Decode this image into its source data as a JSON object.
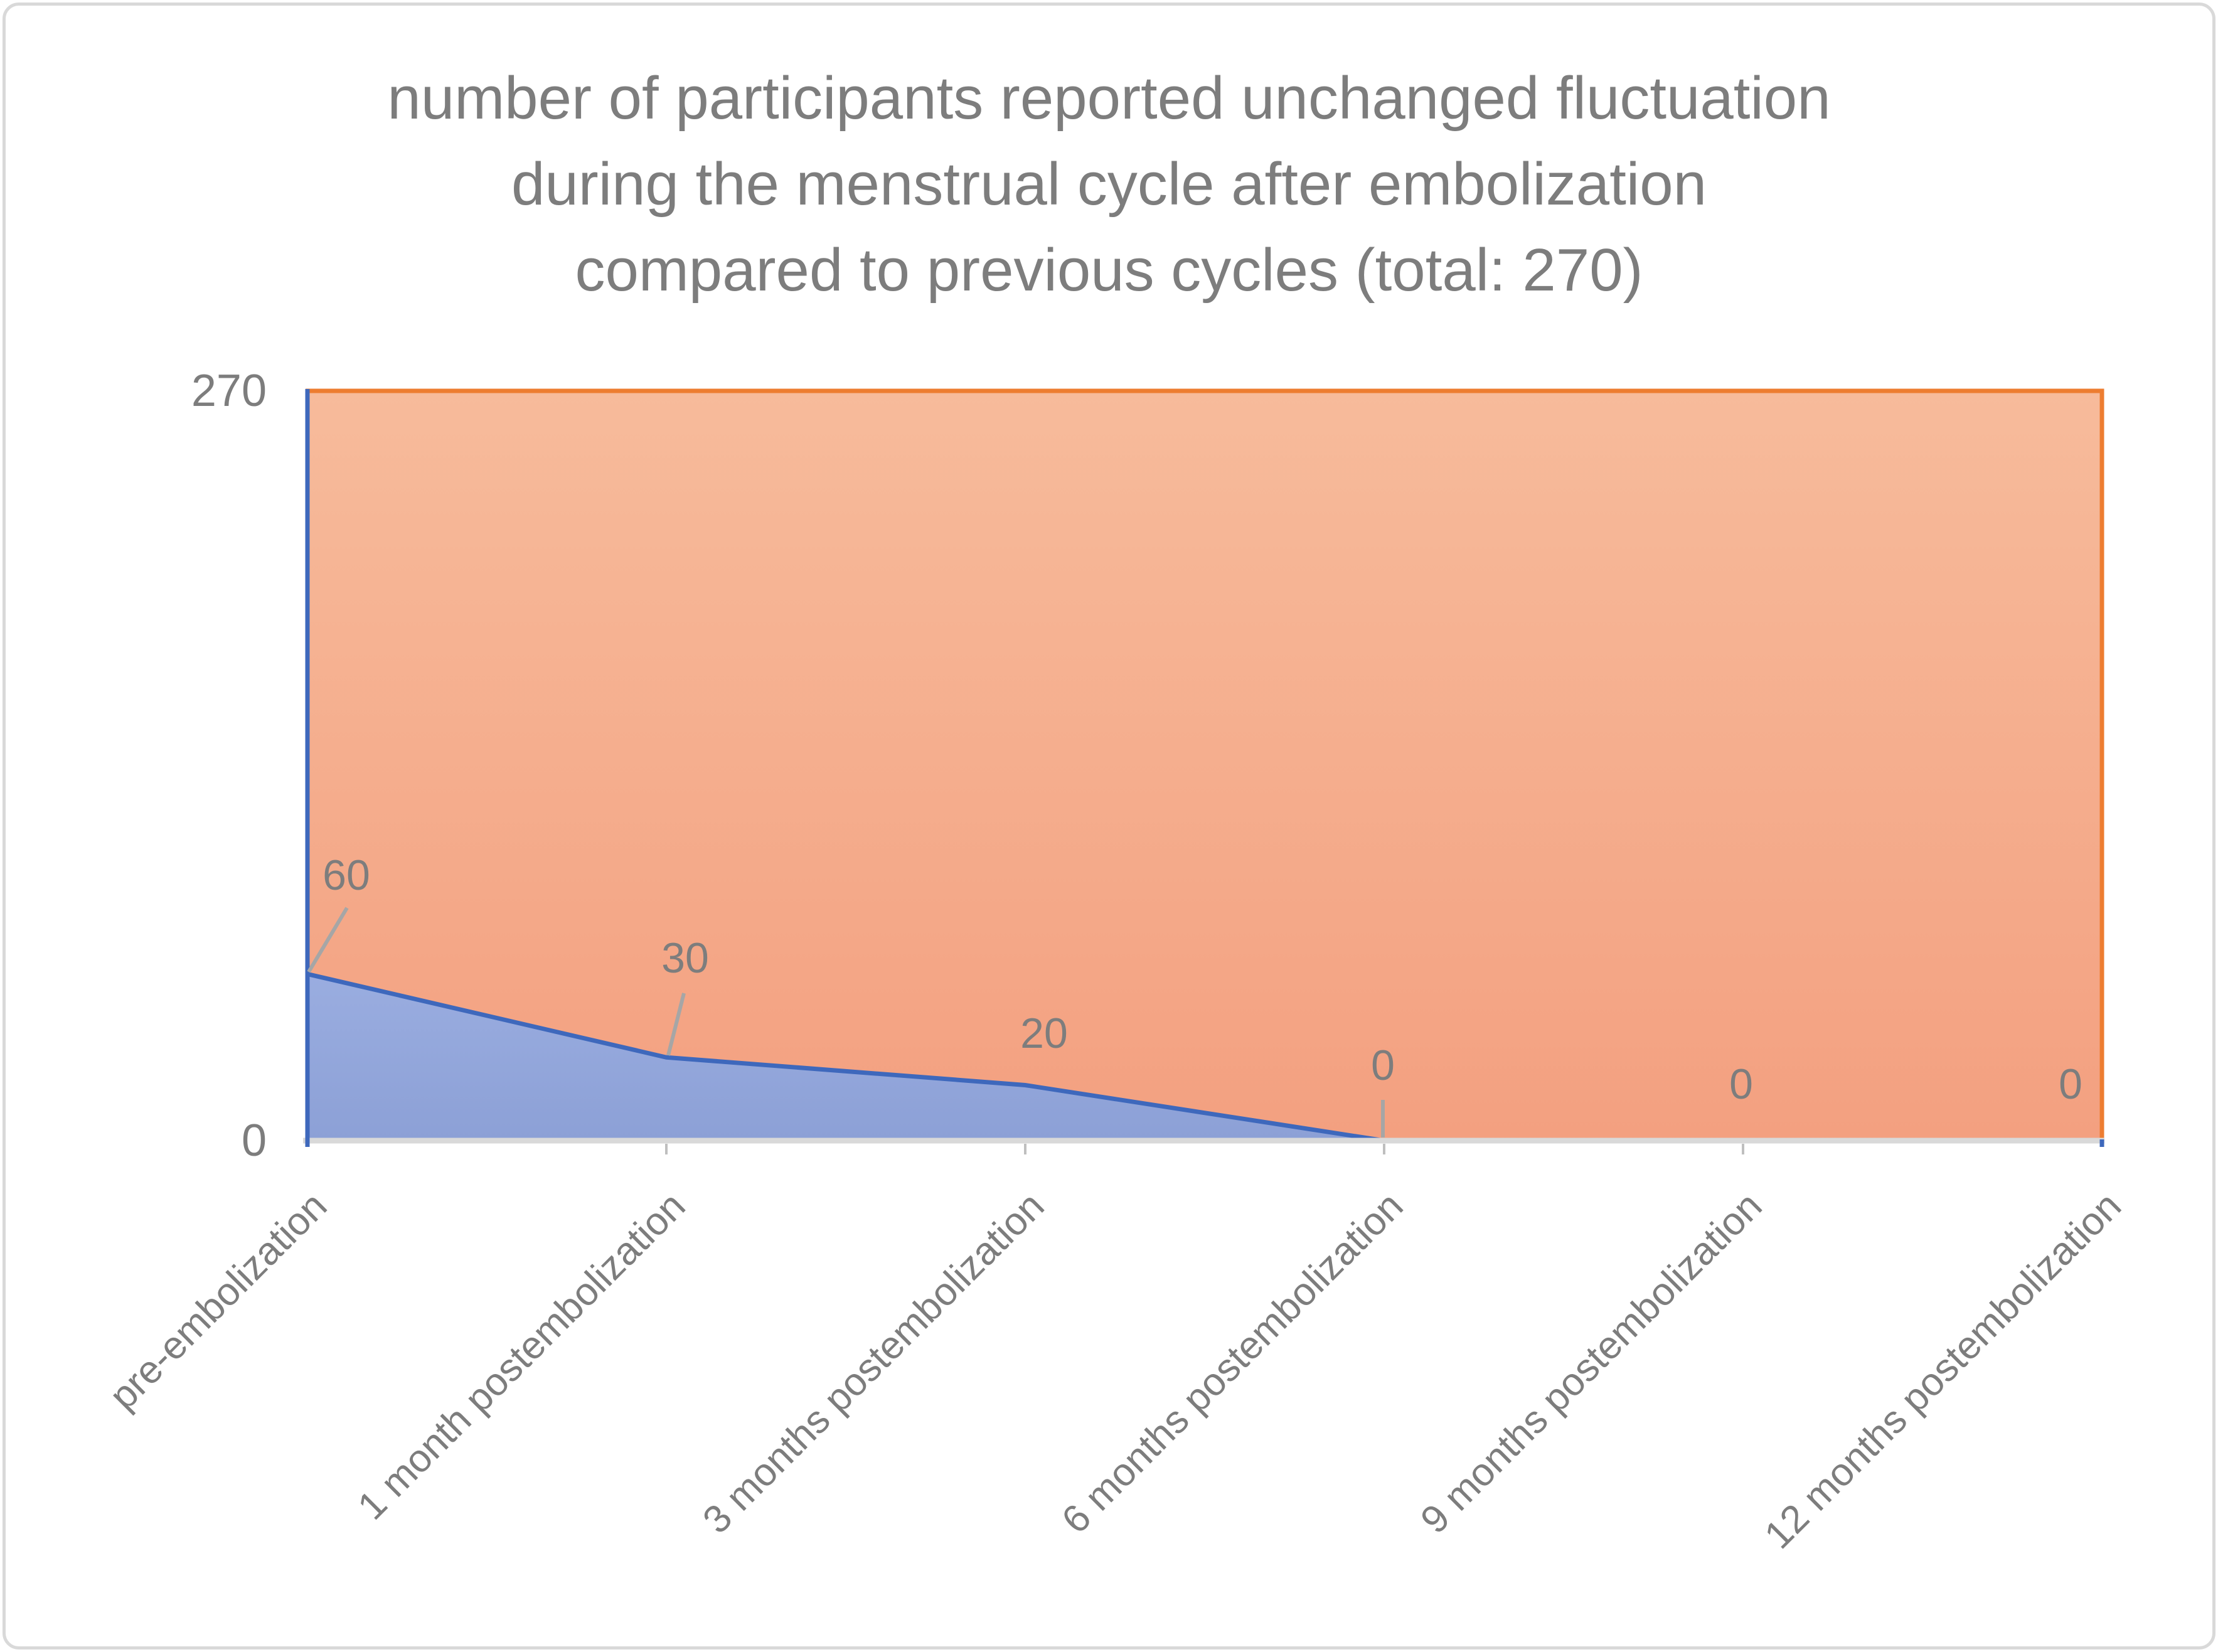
{
  "figure": {
    "background": "#FFFFFF",
    "border_color": "#D9D9D9"
  },
  "chart_data": {
    "type": "area",
    "stacked": true,
    "title": "number of participants reported unchanged fluctuation during the menstrual cycle after embolization compared to previous cycles (total: 270)",
    "title_lines": [
      "number of participants reported unchanged fluctuation",
      "during the menstrual cycle after embolization",
      "compared to previous cycles (total: 270)"
    ],
    "total": 270,
    "categories": [
      "pre-embolization",
      "1 month postembolization",
      "3 months postembolization",
      "6 months postembolization",
      "9 months postembolization",
      "12 months postembolization"
    ],
    "series": [
      {
        "id": "blue-series",
        "values": [
          60,
          30,
          20,
          0,
          0,
          0
        ],
        "fill_top": "#9AADE0",
        "fill_bottom": "#8CA0D6",
        "border": "#3E68BC"
      },
      {
        "id": "orange-series",
        "values": [
          210,
          240,
          250,
          270,
          270,
          270
        ],
        "fill_top": "#F7BB9B",
        "fill_bottom": "#F3A080",
        "border": "#ED7D31"
      }
    ],
    "data_labels": [
      "60",
      "30",
      "20",
      "0",
      "0",
      "0"
    ],
    "ylim": [
      0,
      270
    ],
    "yticks": [
      {
        "label": "270",
        "value": 270
      },
      {
        "label": "0",
        "value": 0
      }
    ],
    "grid": false,
    "legend": "none",
    "text_color": "#7D7D7D",
    "leader_color": "#A6A6A6",
    "axis_line_color": "#D9D9D9",
    "tick_color": "#BFBFBF"
  }
}
